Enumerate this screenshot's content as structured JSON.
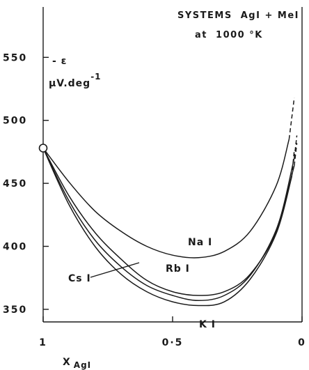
{
  "chart_data": {
    "type": "line",
    "title": "SYSTEMS  AgI + MeI",
    "subtitle": "at  1000 °K",
    "ylabel_line1": "- ε",
    "ylabel_unit_base": "μV.deg",
    "ylabel_unit_exp": "-1",
    "xlabel_base": "X",
    "xlabel_sub": "AgI",
    "xlim": [
      1,
      0
    ],
    "ylim": [
      340,
      590
    ],
    "x_ticks": [
      {
        "value": 1,
        "label": "1"
      },
      {
        "value": 0.5,
        "label": "0·5"
      },
      {
        "value": 0,
        "label": "0"
      }
    ],
    "y_ticks": [
      {
        "value": 350,
        "label": "350"
      },
      {
        "value": 400,
        "label": "400"
      },
      {
        "value": 450,
        "label": "450"
      },
      {
        "value": 500,
        "label": "500"
      },
      {
        "value": 550,
        "label": "550"
      }
    ],
    "start_point": {
      "x": 1,
      "y": 478
    },
    "series": [
      {
        "name": "NaI",
        "x": [
          1,
          0.9,
          0.8,
          0.7,
          0.6,
          0.5,
          0.4,
          0.3,
          0.2,
          0.1,
          0.05
        ],
        "y": [
          478,
          451,
          428,
          412,
          400,
          393,
          391,
          396,
          412,
          448,
          485
        ],
        "dashed": {
          "x": [
            0.05,
            0.03
          ],
          "y": [
            485,
            518
          ]
        }
      },
      {
        "name": "RbI",
        "x": [
          1,
          0.9,
          0.8,
          0.7,
          0.6,
          0.5,
          0.4,
          0.3,
          0.2,
          0.1,
          0.03
        ],
        "y": [
          478,
          440,
          411,
          390,
          373,
          364,
          361,
          364,
          378,
          412,
          470
        ],
        "dashed": {
          "x": [
            0.03,
            0.02
          ],
          "y": [
            470,
            488
          ]
        }
      },
      {
        "name": "CsI",
        "x": [
          1,
          0.9,
          0.8,
          0.7,
          0.6,
          0.5,
          0.4,
          0.3,
          0.2,
          0.1,
          0.03
        ],
        "y": [
          478,
          436,
          405,
          384,
          369,
          361,
          357,
          361,
          377,
          413,
          464
        ],
        "dashed": {
          "x": [
            0.03,
            0.02
          ],
          "y": [
            464,
            482
          ]
        }
      },
      {
        "name": "KI",
        "x": [
          1,
          0.9,
          0.8,
          0.7,
          0.6,
          0.5,
          0.4,
          0.3,
          0.2,
          0.1,
          0.04
        ],
        "y": [
          478,
          433,
          400,
          378,
          364,
          356,
          353,
          356,
          374,
          410,
          455
        ],
        "dashed": {
          "x": [
            0.04,
            0.03
          ],
          "y": [
            455,
            476
          ]
        }
      }
    ],
    "labels": {
      "NaI": "Na I",
      "RbI": "Rb I",
      "CsI": "Cs I",
      "KI": "K I"
    }
  }
}
